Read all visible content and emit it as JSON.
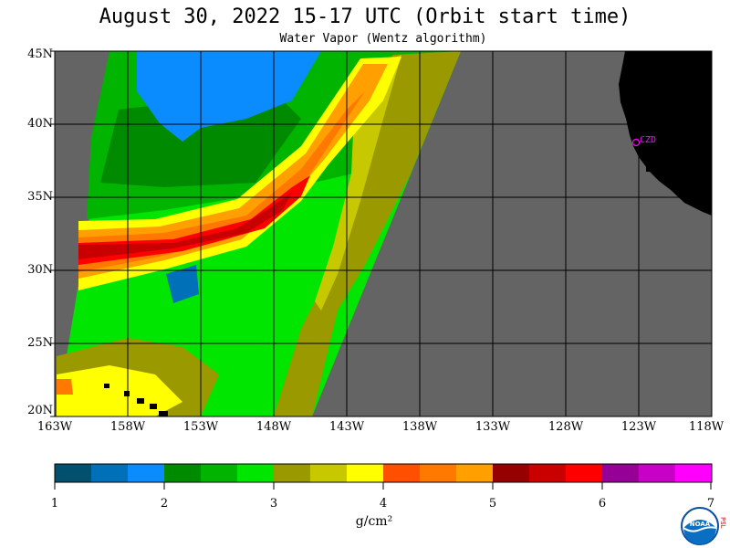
{
  "title": "August 30, 2022  15-17 UTC  (Orbit start time)",
  "subtitle": "Water Vapor (Wentz algorithm)",
  "map": {
    "lat_labels": [
      "45N",
      "40N",
      "35N",
      "30N",
      "25N",
      "20N"
    ],
    "lon_labels": [
      "163W",
      "158W",
      "153W",
      "148W",
      "143W",
      "138W",
      "133W",
      "128W",
      "123W",
      "118W"
    ],
    "station_label": "CZD",
    "colors": {
      "no_data": "#646464",
      "land": "#000000",
      "grid": "#000000",
      "station": "#ff00ff"
    }
  },
  "colorbar": {
    "ticks": [
      "1",
      "2",
      "3",
      "4",
      "5",
      "6",
      "7"
    ],
    "colors": [
      "#00506e",
      "#0070b8",
      "#0a8cff",
      "#008a00",
      "#00b400",
      "#00e600",
      "#9a9a00",
      "#c8c800",
      "#ffff00",
      "#ff5000",
      "#ff7800",
      "#ffa000",
      "#960000",
      "#c80000",
      "#ff0000",
      "#960096",
      "#c800c8",
      "#ff00ff"
    ],
    "units": "g/cm²"
  },
  "logo": {
    "text": "NOAA",
    "side_text": "PSL"
  }
}
